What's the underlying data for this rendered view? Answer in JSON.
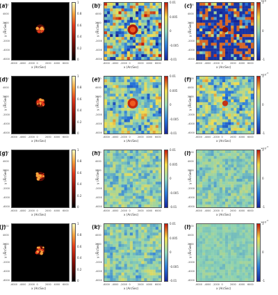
{
  "figure": {
    "rows": [
      {
        "panels": [
          {
            "label": "(a)",
            "type": "image",
            "colorbar": [
              "1",
              "0.8",
              "0.6",
              "0.4",
              "0.2",
              "0"
            ]
          },
          {
            "label": "(b)",
            "type": "diff-strong",
            "colorbar": [
              "0.01",
              "0.005",
              "0",
              "-0.005",
              "-0.01"
            ]
          },
          {
            "label": "(c)",
            "type": "diff-noise-strong",
            "exponent": "×10",
            "exp_power": "-3",
            "colorbar": [
              "1",
              "",
              "0",
              "",
              "-1"
            ]
          }
        ]
      },
      {
        "panels": [
          {
            "label": "(d)",
            "type": "image",
            "colorbar": [
              "1",
              "0.8",
              "0.6",
              "0.4",
              "0.2",
              "0"
            ]
          },
          {
            "label": "(e)",
            "type": "diff-medium",
            "colorbar": [
              "0.01",
              "0.005",
              "0",
              "-0.005",
              "-0.01"
            ]
          },
          {
            "label": "(f)",
            "type": "diff-noise-medium",
            "exponent": "×10",
            "exp_power": "-3",
            "colorbar": [
              "1",
              "",
              "0",
              "",
              "-1"
            ]
          }
        ]
      },
      {
        "panels": [
          {
            "label": "(g)",
            "type": "image",
            "colorbar": [
              "1",
              "0.8",
              "0.6",
              "0.4",
              "0.2",
              "0"
            ]
          },
          {
            "label": "(h)",
            "type": "diff-weak",
            "colorbar": [
              "0.01",
              "0.005",
              "0",
              "-0.005",
              "-0.01"
            ]
          },
          {
            "label": "(i)",
            "type": "diff-noise-weak",
            "exponent": "×10",
            "exp_power": "-3",
            "colorbar": [
              "1",
              "",
              "0",
              "",
              "-1"
            ]
          }
        ]
      },
      {
        "panels": [
          {
            "label": "(j)",
            "type": "image",
            "colorbar": [
              "1",
              "0.8",
              "0.6",
              "0.4",
              "0.2",
              "0"
            ]
          },
          {
            "label": "(k)",
            "type": "diff-weak",
            "colorbar": [
              "0.01",
              "0.005",
              "0",
              "-0.005",
              "-0.01"
            ]
          },
          {
            "label": "(l)",
            "type": "diff-noise-flat",
            "exponent": "×10",
            "exp_power": "-3",
            "colorbar": [
              "1",
              "",
              "0",
              "",
              "-1"
            ]
          }
        ]
      }
    ],
    "axes": {
      "xlabel": "x (ArcSec)",
      "ylabel": "y (ArcSec)",
      "xticks": [
        "-6000",
        "-4000",
        "-2000",
        "0",
        "2000",
        "4000",
        "6000"
      ],
      "yticks": [
        "6000",
        "4000",
        "2000",
        "0",
        "-2000",
        "-4000",
        "-6000"
      ]
    },
    "colors": {
      "hot_low": "#000000",
      "hot_mid": "#c41a0a",
      "hot_high": "#ffff80",
      "div_neg": "#10239e",
      "div_zero": "#8fd6b8",
      "div_pos": "#c2170a"
    }
  }
}
